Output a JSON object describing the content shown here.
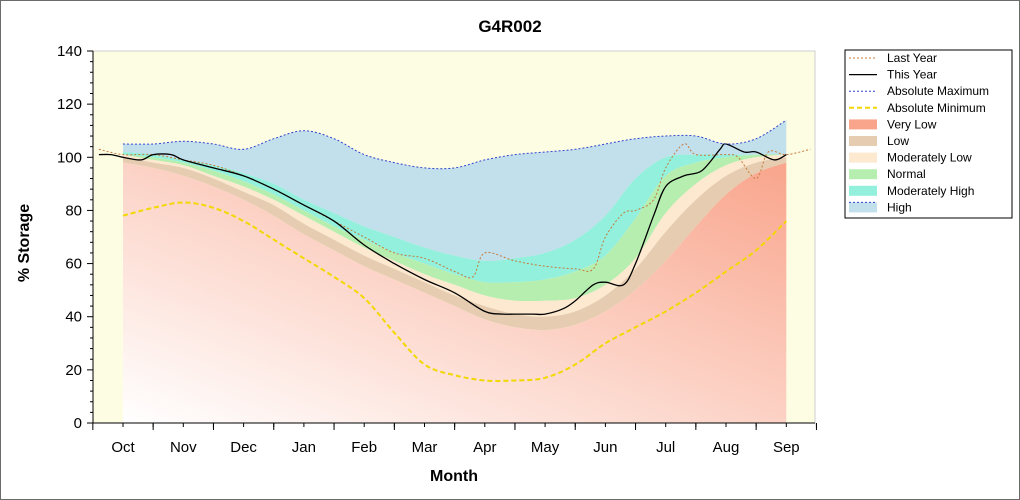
{
  "chart_data": {
    "type": "area",
    "title": "G4R002",
    "xlabel": "Month",
    "ylabel": "% Storage",
    "ylim": [
      0,
      140
    ],
    "yticks": [
      0,
      20,
      40,
      60,
      80,
      100,
      120,
      140
    ],
    "categories": [
      "Oct",
      "Nov",
      "Dec",
      "Jan",
      "Feb",
      "Mar",
      "Apr",
      "May",
      "Jun",
      "Jul",
      "Aug",
      "Sep"
    ],
    "grid": false,
    "legend_position": "right",
    "colors": {
      "plot_bg": "#fdfde4",
      "very_low": "#f9a58c",
      "low": "#e6cdb1",
      "moderately_low": "#fde8d0",
      "normal": "#b6eeb0",
      "moderately_high": "#93f0dd",
      "high": "#c2dfec",
      "last_year": "#c47a3a",
      "this_year": "#000000",
      "abs_max": "#3344cc",
      "abs_min": "#f2d800"
    },
    "bands_x": [
      0,
      0.5,
      1,
      1.5,
      2,
      2.5,
      3,
      3.5,
      4,
      4.5,
      5,
      5.5,
      6,
      6.5,
      7,
      7.5,
      8,
      8.5,
      9,
      9.5,
      10,
      10.5,
      11
    ],
    "bands": {
      "very_low_top": [
        98,
        96,
        93,
        89,
        84,
        78,
        71,
        65,
        59,
        54,
        49,
        44,
        39,
        36,
        35,
        37,
        42,
        50,
        61,
        74,
        86,
        94,
        98
      ],
      "low_top": [
        100,
        98,
        96,
        92,
        87,
        82,
        75,
        69,
        63,
        58,
        53,
        48,
        44,
        41,
        40,
        42,
        48,
        58,
        72,
        84,
        93,
        98,
        100
      ],
      "moderately_low_top": [
        101,
        99,
        97,
        93,
        89,
        84,
        78,
        72,
        66,
        61,
        56,
        52,
        48,
        46,
        46,
        47,
        52,
        62,
        79,
        90,
        97,
        100,
        101
      ],
      "normal_top": [
        101,
        100,
        98,
        95,
        91,
        86,
        80,
        74,
        69,
        64,
        60,
        56,
        53,
        53,
        54,
        57,
        63,
        77,
        93,
        98,
        100,
        101,
        101
      ],
      "moderately_high_top": [
        102,
        101,
        99,
        97,
        94,
        90,
        84,
        79,
        74,
        70,
        66,
        63,
        61,
        62,
        64,
        69,
        78,
        92,
        100,
        101,
        101,
        101,
        101
      ],
      "high_top": [
        105,
        105,
        106,
        105,
        103,
        107,
        110,
        107,
        101,
        98,
        96,
        96,
        99,
        101,
        102,
        103,
        105,
        107,
        108,
        108,
        105,
        107,
        114
      ]
    },
    "series": [
      {
        "name": "Last Year",
        "x": [
          -0.4,
          0,
          0.5,
          1,
          1.5,
          2,
          2.5,
          3,
          3.5,
          4,
          4.5,
          5,
          5.5,
          5.8,
          6,
          6.5,
          7,
          7.5,
          7.8,
          8,
          8.3,
          8.5,
          8.8,
          9,
          9.3,
          9.5,
          10,
          10.2,
          10.5,
          10.7,
          11,
          11.4
        ],
        "y": [
          103,
          101,
          101,
          99,
          97,
          93,
          88,
          82,
          76,
          70,
          64,
          62,
          57,
          55,
          64,
          61,
          59,
          58,
          58,
          70,
          79,
          80,
          84,
          96,
          105,
          101,
          101,
          100,
          92,
          102,
          101,
          103
        ]
      },
      {
        "name": "This Year",
        "x": [
          -0.4,
          -0.2,
          0,
          0.3,
          0.5,
          0.8,
          1,
          1.5,
          2,
          2.5,
          3,
          3.5,
          4,
          4.5,
          5,
          5.5,
          6,
          6.3,
          6.5,
          6.8,
          7,
          7.3,
          7.5,
          7.8,
          8,
          8.3,
          8.5,
          8.8,
          9,
          9.3,
          9.6,
          9.9,
          10,
          10.3,
          10.5,
          10.8,
          11
        ],
        "y": [
          101,
          101,
          100,
          99,
          101,
          101,
          99,
          96,
          93,
          88,
          82,
          76,
          67,
          60,
          54,
          49,
          42,
          41,
          41,
          41,
          41,
          43,
          46,
          52,
          53,
          52,
          60,
          78,
          89,
          93,
          95,
          103,
          105,
          102,
          102,
          99,
          101
        ]
      },
      {
        "name": "Absolute Maximum",
        "x": [
          0,
          0.5,
          1,
          1.5,
          2,
          2.5,
          3,
          3.5,
          4,
          4.5,
          5,
          5.5,
          6,
          6.5,
          7,
          7.5,
          8,
          8.5,
          9,
          9.5,
          10,
          10.5,
          11
        ],
        "y": [
          105,
          105,
          106,
          105,
          103,
          107,
          110,
          107,
          101,
          98,
          96,
          96,
          99,
          101,
          102,
          103,
          105,
          107,
          108,
          108,
          105,
          107,
          114
        ]
      },
      {
        "name": "Absolute Minimum",
        "x": [
          0,
          0.5,
          1,
          1.5,
          2,
          2.5,
          3,
          3.5,
          4,
          4.5,
          5,
          5.5,
          6,
          6.5,
          7,
          7.5,
          8,
          8.5,
          9,
          9.5,
          10,
          10.5,
          11
        ],
        "y": [
          78,
          81,
          83,
          81,
          76,
          69,
          62,
          55,
          47,
          34,
          22,
          18,
          16,
          16,
          17,
          22,
          30,
          36,
          42,
          49,
          57,
          65,
          76
        ]
      }
    ],
    "legend": [
      "Last Year",
      "This Year",
      "Absolute Maximum",
      "Absolute Minimum",
      "Very Low",
      "Low",
      "Moderately Low",
      "Normal",
      "Moderately High",
      "High"
    ]
  }
}
